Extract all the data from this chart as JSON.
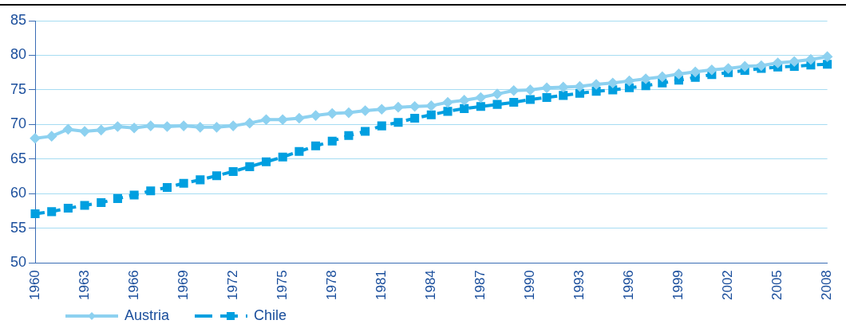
{
  "chart_data": {
    "type": "line",
    "categories": [
      "1960",
      null,
      null,
      "1963",
      null,
      null,
      "1966",
      null,
      null,
      "1969",
      null,
      null,
      "1972",
      null,
      null,
      "1975",
      null,
      null,
      "1978",
      null,
      null,
      "1981",
      null,
      null,
      "1984",
      null,
      null,
      "1987",
      null,
      null,
      "1990",
      null,
      null,
      "1993",
      null,
      null,
      "1996",
      null,
      null,
      "1999",
      null,
      null,
      "2002",
      null,
      null,
      "2005",
      null,
      null,
      "2008"
    ],
    "series": [
      {
        "name": "Austria",
        "color": "#8dd1f0",
        "marker": "diamond",
        "line_style": "solid",
        "values": [
          68,
          68.3,
          69.3,
          69.0,
          69.2,
          69.7,
          69.5,
          69.8,
          69.7,
          69.8,
          69.6,
          69.6,
          69.8,
          70.2,
          70.7,
          70.7,
          70.9,
          71.3,
          71.6,
          71.7,
          72.0,
          72.2,
          72.5,
          72.6,
          72.7,
          73.2,
          73.5,
          73.9,
          74.4,
          74.9,
          75.0,
          75.3,
          75.4,
          75.5,
          75.8,
          76.0,
          76.3,
          76.6,
          76.9,
          77.3,
          77.6,
          77.9,
          78.1,
          78.4,
          78.5,
          78.9,
          79.1,
          79.4,
          79.8
        ]
      },
      {
        "name": "Chile",
        "color": "#009fe0",
        "marker": "square",
        "line_style": "dashed",
        "values": [
          57.1,
          57.4,
          57.9,
          58.3,
          58.7,
          59.3,
          59.8,
          60.4,
          60.9,
          61.5,
          62.0,
          62.6,
          63.2,
          63.9,
          64.6,
          65.3,
          66.1,
          66.9,
          67.6,
          68.4,
          69.0,
          69.8,
          70.3,
          70.9,
          71.4,
          71.9,
          72.3,
          72.6,
          72.9,
          73.2,
          73.6,
          73.9,
          74.2,
          74.5,
          74.8,
          75.0,
          75.3,
          75.6,
          76.0,
          76.4,
          76.8,
          77.2,
          77.5,
          77.8,
          78.1,
          78.3,
          78.4,
          78.6,
          78.7
        ]
      }
    ],
    "ylim": [
      50,
      85
    ],
    "yticks": [
      50,
      55,
      60,
      65,
      70,
      75,
      80,
      85
    ],
    "grid": "y",
    "legend": "bottom left"
  }
}
